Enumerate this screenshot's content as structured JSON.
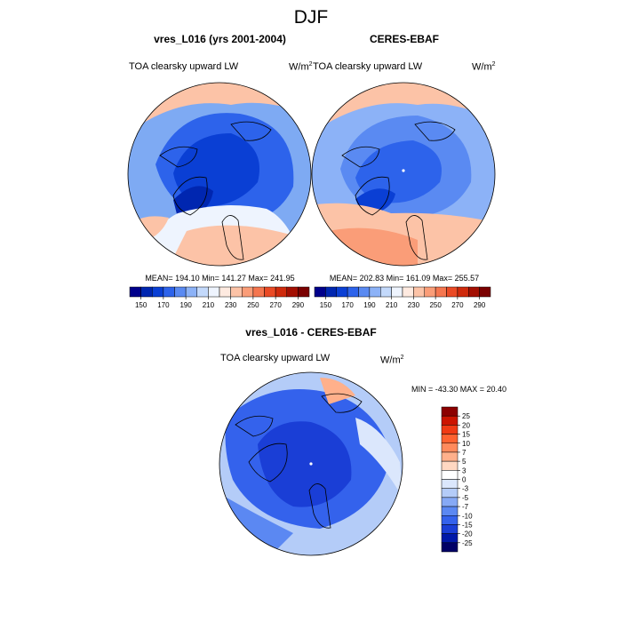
{
  "figure": {
    "title": "DJF"
  },
  "colormap": {
    "abs_colors": [
      "#00008b",
      "#0026b0",
      "#0a3fd4",
      "#2d63eb",
      "#5a8af2",
      "#8cb2f7",
      "#c3d9fb",
      "#eef4fe",
      "#feeae0",
      "#fcc3a7",
      "#fa9d78",
      "#f5764f",
      "#ea4a25",
      "#cf2a0c",
      "#a30f02",
      "#7a0000"
    ],
    "diff_colors": [
      "#000066",
      "#0018a8",
      "#1a3ed6",
      "#3462ec",
      "#5b88f2",
      "#86a9f5",
      "#b4ccf8",
      "#dbe7fc",
      "#ffffff",
      "#ffd8c2",
      "#ffb08b",
      "#ff8a5c",
      "#ff6230",
      "#f03a14",
      "#cc1400",
      "#8c0000"
    ]
  },
  "chart_data": [
    {
      "type": "heatmap",
      "panel": "model",
      "title": "vres_L016 (yrs 2001-2004)",
      "left_label": "TOA clearsky upward LW",
      "units_base": "W/m",
      "units_exp": "2",
      "stats": "MEAN= 194.10  Min= 141.27  Max= 241.95",
      "mean": 194.1,
      "min": 141.27,
      "max": 241.95,
      "colorbar_ticks": [
        "150",
        "170",
        "190",
        "210",
        "230",
        "250",
        "270",
        "290"
      ],
      "levels": [
        150,
        160,
        170,
        180,
        190,
        200,
        210,
        220,
        230,
        240,
        250,
        260,
        270,
        280,
        290
      ]
    },
    {
      "type": "heatmap",
      "panel": "obs",
      "title": "CERES-EBAF",
      "left_label": "TOA clearsky upward LW",
      "units_base": "W/m",
      "units_exp": "2",
      "stats": "MEAN= 202.83  Min= 161.09  Max= 255.57",
      "mean": 202.83,
      "min": 161.09,
      "max": 255.57,
      "colorbar_ticks": [
        "150",
        "170",
        "190",
        "210",
        "230",
        "250",
        "270",
        "290"
      ],
      "levels": [
        150,
        160,
        170,
        180,
        190,
        200,
        210,
        220,
        230,
        240,
        250,
        260,
        270,
        280,
        290
      ]
    },
    {
      "type": "heatmap",
      "panel": "diff",
      "title": "vres_L016 - CERES-EBAF",
      "left_label": "TOA clearsky upward LW",
      "units_base": "W/m",
      "units_exp": "2",
      "stats": "MIN = -43.30 MAX =  20.40",
      "min": -43.3,
      "max": 20.4,
      "colorbar_ticks": [
        "25",
        "20",
        "15",
        "10",
        "7",
        "5",
        "3",
        "0",
        "-3",
        "-5",
        "-7",
        "-10",
        "-15",
        "-20",
        "-25"
      ],
      "levels": [
        -25,
        -20,
        -15,
        -10,
        -7,
        -5,
        -3,
        0,
        3,
        5,
        7,
        10,
        15,
        20,
        25
      ]
    }
  ]
}
